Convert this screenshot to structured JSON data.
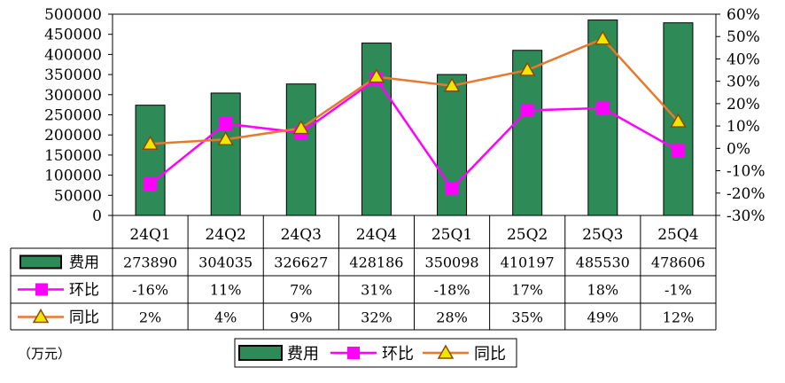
{
  "chart_data": {
    "type": "bar",
    "categories": [
      "24Q1",
      "24Q2",
      "24Q3",
      "24Q4",
      "25Q1",
      "25Q2",
      "25Q3",
      "25Q4"
    ],
    "series": [
      {
        "name": "费用",
        "type": "bar",
        "axis": "left",
        "color": "#2e8b57",
        "values": [
          273890,
          304035,
          326627,
          428186,
          350098,
          410197,
          485530,
          478606
        ],
        "labels": [
          "273890",
          "304035",
          "326627",
          "428186",
          "350098",
          "410197",
          "485530",
          "478606"
        ]
      },
      {
        "name": "环比",
        "type": "line",
        "axis": "right",
        "color": "#ff00ff",
        "marker": "square",
        "values": [
          -16,
          11,
          7,
          31,
          -18,
          17,
          18,
          -1
        ],
        "labels": [
          "-16%",
          "11%",
          "7%",
          "31%",
          "-18%",
          "17%",
          "18%",
          "-1%"
        ]
      },
      {
        "name": "同比",
        "type": "line",
        "axis": "right",
        "color": "#e8792c",
        "marker": "triangle",
        "marker_fill": "#f2e600",
        "values": [
          2,
          4,
          9,
          32,
          28,
          35,
          49,
          12
        ],
        "labels": [
          "2%",
          "4%",
          "9%",
          "32%",
          "28%",
          "35%",
          "49%",
          "12%"
        ]
      }
    ],
    "y_left": {
      "ylim": [
        0,
        500000
      ],
      "ticks": [
        "0",
        "50000",
        "100000",
        "150000",
        "200000",
        "250000",
        "300000",
        "350000",
        "400000",
        "450000",
        "500000"
      ]
    },
    "y_right": {
      "ylim": [
        -30,
        60
      ],
      "ticks": [
        "-30%",
        "-20%",
        "-10%",
        "0%",
        "10%",
        "20%",
        "30%",
        "40%",
        "50%",
        "60%"
      ]
    },
    "unit_note": "（万元）",
    "grid": false,
    "legend_position": "bottom",
    "data_table": true
  }
}
